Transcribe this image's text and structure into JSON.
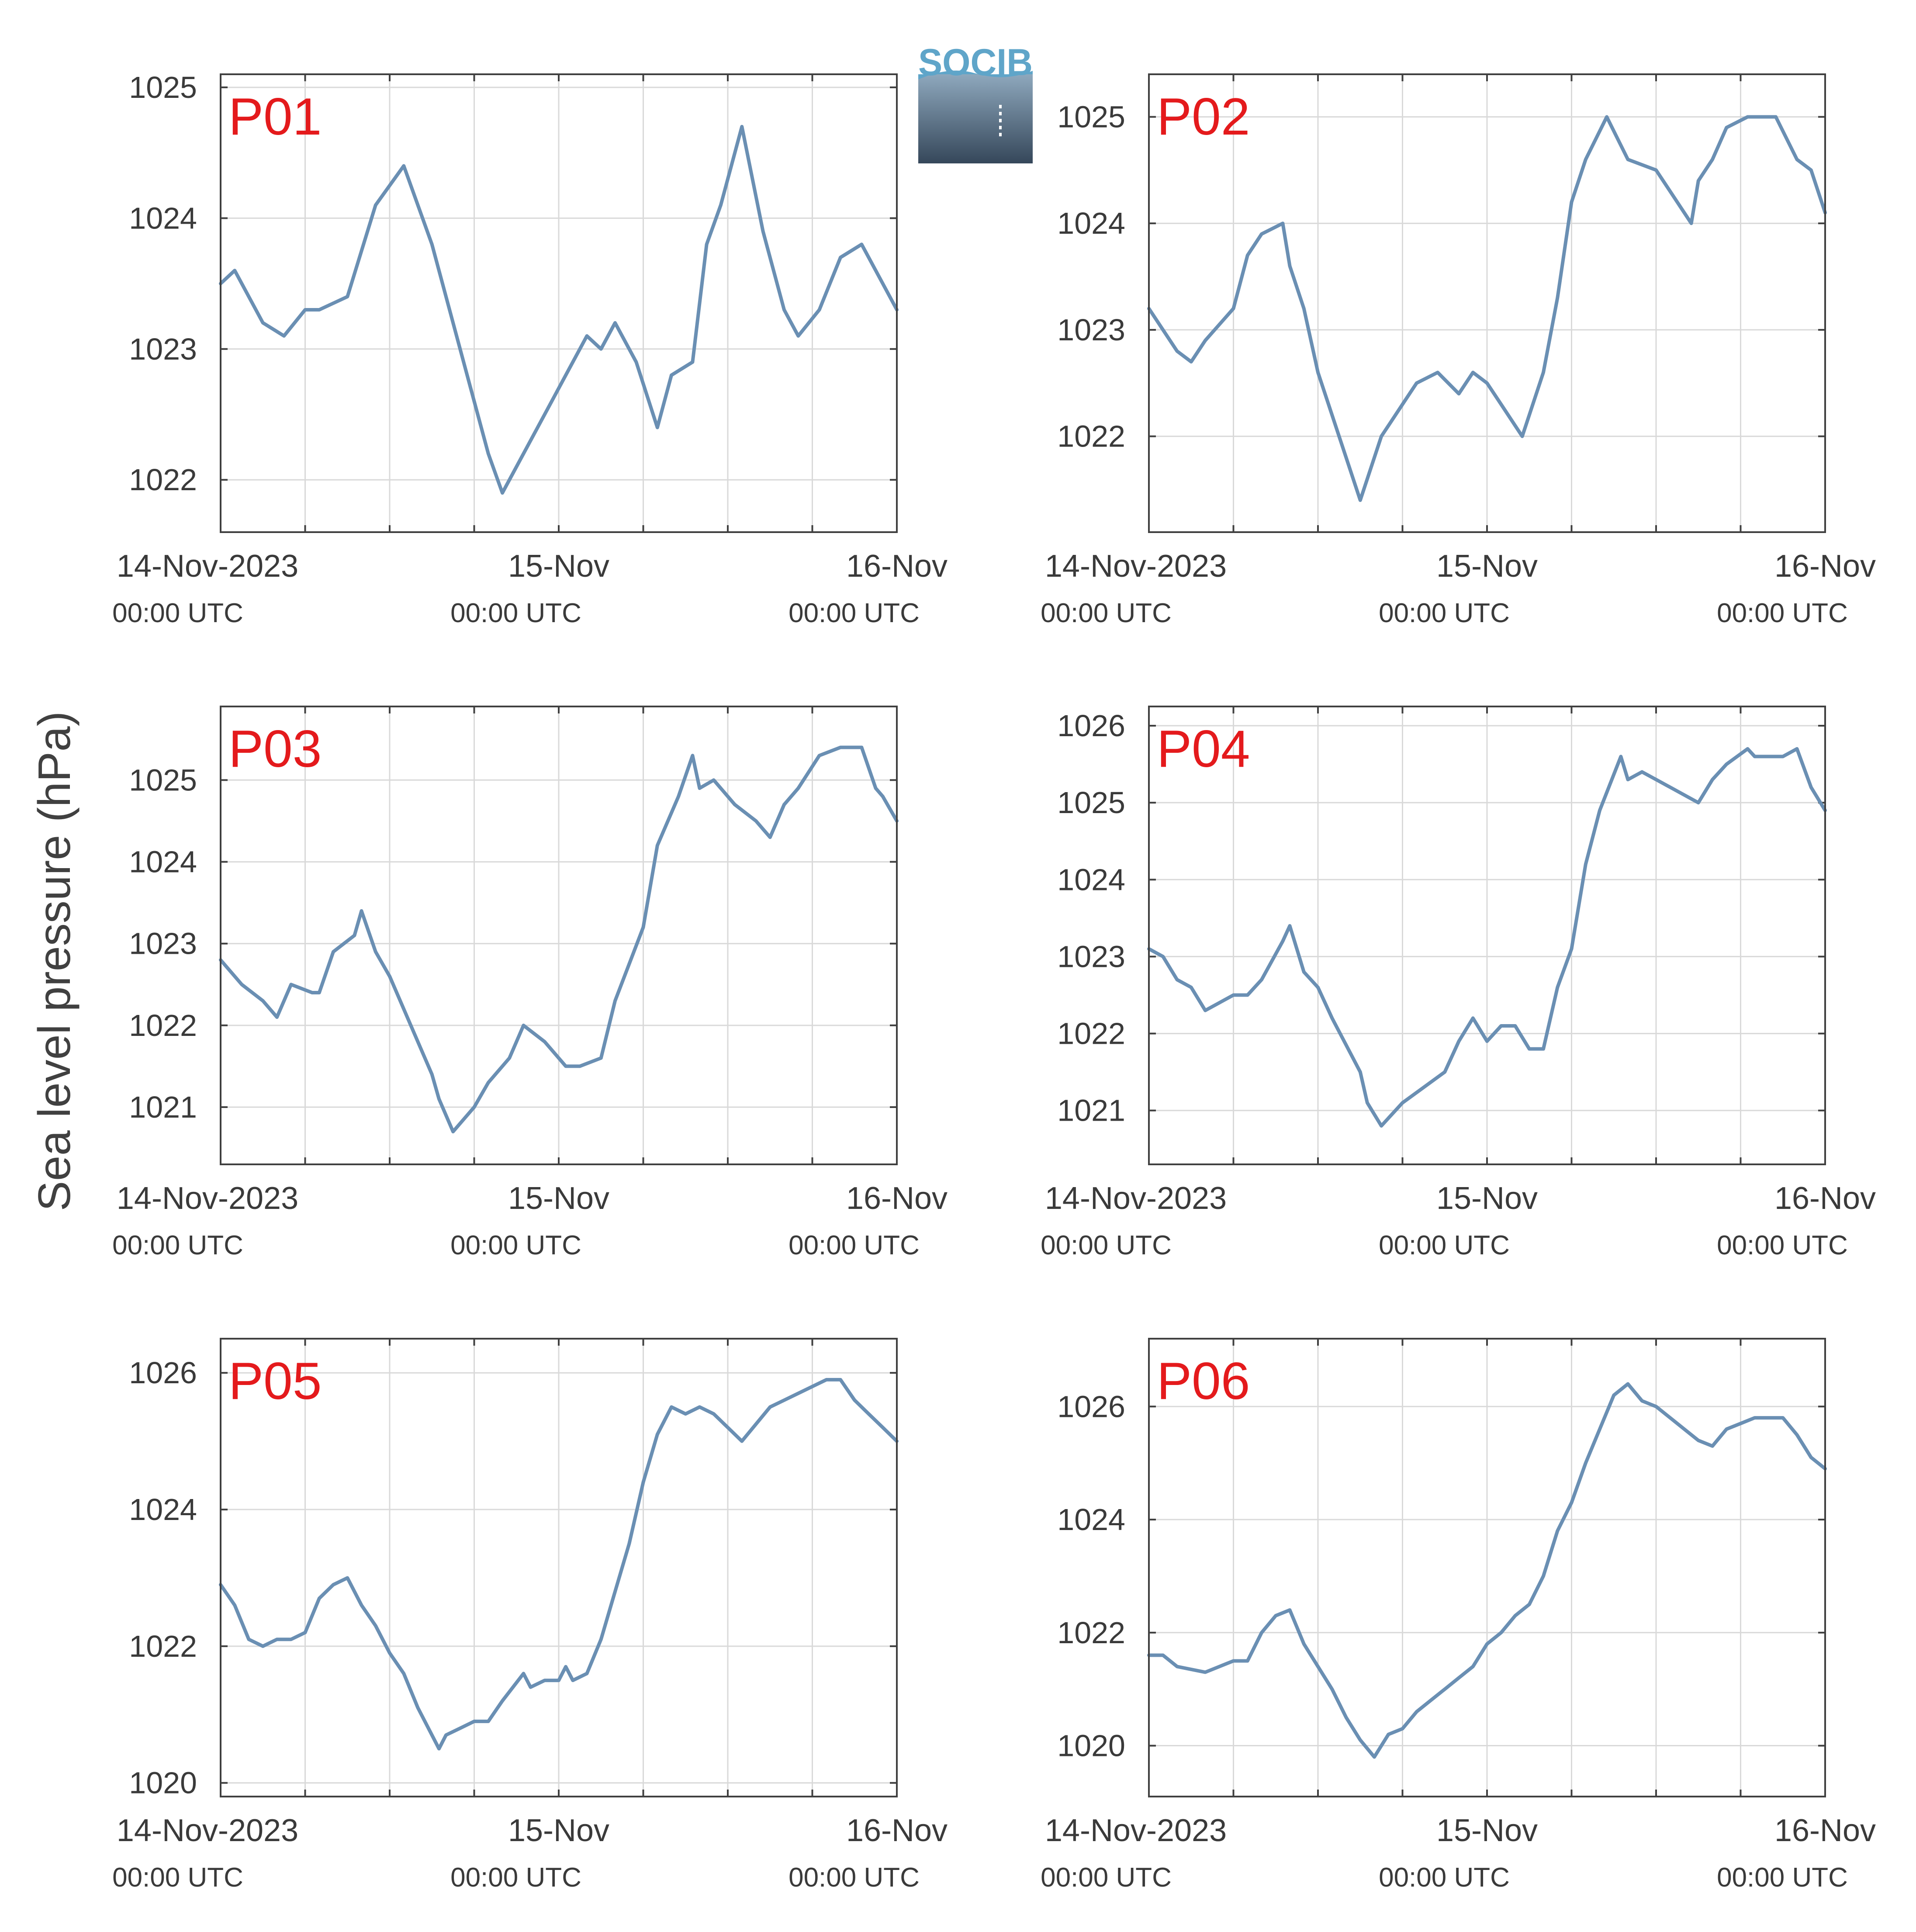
{
  "logo": {
    "text": "SOCIB",
    "text_color": "#5fa5c9",
    "gradient_top": "#8ea8bd",
    "gradient_bottom": "#35475a"
  },
  "ylabel": "Sea level pressure (hPa)",
  "colors": {
    "line": "#6a8fb3",
    "label": "#e41a1c",
    "grid": "#d9d9d9",
    "axis": "#404040"
  },
  "chart_data": [
    {
      "type": "line",
      "label": "P01",
      "ylim": [
        1021.6,
        1025.1
      ],
      "yticks": [
        1022,
        1023,
        1024,
        1025
      ],
      "grid": true,
      "x_range": [
        "2023-11-14T00:00",
        "2023-11-16T00:00"
      ],
      "xticks": [
        {
          "text": "14-Nov-2023",
          "sub": "00:00 UTC"
        },
        {
          "text": "15-Nov",
          "sub": "00:00 UTC"
        },
        {
          "text": "16-Nov",
          "sub": "00:00 UTC"
        }
      ],
      "series": [
        {
          "x": [
            "2023-11-14T00:00",
            "2023-11-14T01:00",
            "2023-11-14T03:00",
            "2023-11-14T04:30",
            "2023-11-14T06:00",
            "2023-11-14T07:00",
            "2023-11-14T09:00",
            "2023-11-14T11:00",
            "2023-11-14T13:00",
            "2023-11-14T15:00",
            "2023-11-14T16:00",
            "2023-11-14T18:00",
            "2023-11-14T19:00",
            "2023-11-14T20:00",
            "2023-11-14T21:30",
            "2023-11-14T23:00",
            "2023-11-15T00:30",
            "2023-11-15T02:00",
            "2023-11-15T03:00",
            "2023-11-15T04:00",
            "2023-11-15T05:30",
            "2023-11-15T07:00",
            "2023-11-15T08:00",
            "2023-11-15T09:30",
            "2023-11-15T10:30",
            "2023-11-15T11:30",
            "2023-11-15T13:00",
            "2023-11-15T14:30",
            "2023-11-15T16:00",
            "2023-11-15T17:00",
            "2023-11-15T18:30",
            "2023-11-15T20:00",
            "2023-11-15T21:30",
            "2023-11-15T23:00",
            "2023-11-16T00:00"
          ],
          "y": [
            1023.5,
            1023.6,
            1023.2,
            1023.1,
            1023.3,
            1023.3,
            1023.4,
            1024.1,
            1024.4,
            1023.8,
            1023.4,
            1022.6,
            1022.2,
            1021.9,
            1022.2,
            1022.5,
            1022.8,
            1023.1,
            1023.0,
            1023.2,
            1022.9,
            1022.4,
            1022.8,
            1022.9,
            1023.8,
            1024.1,
            1024.7,
            1023.9,
            1023.3,
            1023.1,
            1023.3,
            1023.7,
            1023.8,
            1023.5,
            1023.3
          ]
        }
      ]
    },
    {
      "type": "line",
      "label": "P02",
      "ylim": [
        1021.1,
        1025.4
      ],
      "yticks": [
        1022,
        1023,
        1024,
        1025
      ],
      "grid": true,
      "x_range": [
        "2023-11-14T00:00",
        "2023-11-16T00:00"
      ],
      "xticks": [
        {
          "text": "14-Nov-2023",
          "sub": "00:00 UTC"
        },
        {
          "text": "15-Nov",
          "sub": "00:00 UTC"
        },
        {
          "text": "16-Nov",
          "sub": "00:00 UTC"
        }
      ],
      "series": [
        {
          "x": [
            "2023-11-14T00:00",
            "2023-11-14T02:00",
            "2023-11-14T03:00",
            "2023-11-14T04:00",
            "2023-11-14T06:00",
            "2023-11-14T07:00",
            "2023-11-14T08:00",
            "2023-11-14T09:30",
            "2023-11-14T10:00",
            "2023-11-14T11:00",
            "2023-11-14T12:00",
            "2023-11-14T13:30",
            "2023-11-14T15:00",
            "2023-11-14T16:30",
            "2023-11-14T18:00",
            "2023-11-14T19:00",
            "2023-11-14T20:30",
            "2023-11-14T22:00",
            "2023-11-14T23:00",
            "2023-11-15T00:00",
            "2023-11-15T01:00",
            "2023-11-15T02:30",
            "2023-11-15T04:00",
            "2023-11-15T05:00",
            "2023-11-15T06:00",
            "2023-11-15T07:00",
            "2023-11-15T08:30",
            "2023-11-15T10:00",
            "2023-11-15T12:00",
            "2023-11-15T13:00",
            "2023-11-15T14:30",
            "2023-11-15T15:00",
            "2023-11-15T16:00",
            "2023-11-15T17:00",
            "2023-11-15T18:30",
            "2023-11-15T19:30",
            "2023-11-15T20:30",
            "2023-11-15T22:00",
            "2023-11-15T23:00",
            "2023-11-16T00:00"
          ],
          "y": [
            1023.2,
            1022.8,
            1022.7,
            1022.9,
            1023.2,
            1023.7,
            1023.9,
            1024.0,
            1023.6,
            1023.2,
            1022.6,
            1022.0,
            1021.4,
            1022.0,
            1022.3,
            1022.5,
            1022.6,
            1022.4,
            1022.6,
            1022.5,
            1022.3,
            1022.0,
            1022.6,
            1023.3,
            1024.2,
            1024.6,
            1025.0,
            1024.6,
            1024.5,
            1024.3,
            1024.0,
            1024.4,
            1024.6,
            1024.9,
            1025.0,
            1025.0,
            1025.0,
            1024.6,
            1024.5,
            1024.1
          ]
        }
      ]
    },
    {
      "type": "line",
      "label": "P03",
      "ylim": [
        1020.3,
        1025.9
      ],
      "yticks": [
        1021,
        1022,
        1023,
        1024,
        1025
      ],
      "grid": true,
      "x_range": [
        "2023-11-14T00:00",
        "2023-11-16T00:00"
      ],
      "xticks": [
        {
          "text": "14-Nov-2023",
          "sub": "00:00 UTC"
        },
        {
          "text": "15-Nov",
          "sub": "00:00 UTC"
        },
        {
          "text": "16-Nov",
          "sub": "00:00 UTC"
        }
      ],
      "series": [
        {
          "x": [
            "2023-11-14T00:00",
            "2023-11-14T01:30",
            "2023-11-14T03:00",
            "2023-11-14T04:00",
            "2023-11-14T05:00",
            "2023-11-14T06:30",
            "2023-11-14T07:00",
            "2023-11-14T08:00",
            "2023-11-14T09:30",
            "2023-11-14T10:00",
            "2023-11-14T11:00",
            "2023-11-14T12:00",
            "2023-11-14T13:30",
            "2023-11-14T15:00",
            "2023-11-14T15:30",
            "2023-11-14T16:30",
            "2023-11-14T18:00",
            "2023-11-14T19:00",
            "2023-11-14T20:30",
            "2023-11-14T21:30",
            "2023-11-14T23:00",
            "2023-11-15T00:30",
            "2023-11-15T01:30",
            "2023-11-15T03:00",
            "2023-11-15T04:00",
            "2023-11-15T06:00",
            "2023-11-15T07:00",
            "2023-11-15T08:30",
            "2023-11-15T09:30",
            "2023-11-15T10:00",
            "2023-11-15T11:00",
            "2023-11-15T11:30",
            "2023-11-15T12:30",
            "2023-11-15T14:00",
            "2023-11-15T15:00",
            "2023-11-15T16:00",
            "2023-11-15T17:00",
            "2023-11-15T18:30",
            "2023-11-15T20:00",
            "2023-11-15T21:30",
            "2023-11-15T22:30",
            "2023-11-15T23:00",
            "2023-11-16T00:00"
          ],
          "y": [
            1022.8,
            1022.5,
            1022.3,
            1022.1,
            1022.5,
            1022.4,
            1022.4,
            1022.9,
            1023.1,
            1023.4,
            1022.9,
            1022.6,
            1022.0,
            1021.4,
            1021.1,
            1020.7,
            1021.0,
            1021.3,
            1021.6,
            1022.0,
            1021.8,
            1021.5,
            1021.5,
            1021.6,
            1022.3,
            1023.2,
            1024.2,
            1024.8,
            1025.3,
            1024.9,
            1025.0,
            1024.9,
            1024.7,
            1024.5,
            1024.3,
            1024.7,
            1024.9,
            1025.3,
            1025.4,
            1025.4,
            1024.9,
            1024.8,
            1024.5
          ]
        }
      ]
    },
    {
      "type": "line",
      "label": "P04",
      "ylim": [
        1020.3,
        1026.25
      ],
      "yticks": [
        1021,
        1022,
        1023,
        1024,
        1025,
        1026
      ],
      "grid": true,
      "x_range": [
        "2023-11-14T00:00",
        "2023-11-16T00:00"
      ],
      "xticks": [
        {
          "text": "14-Nov-2023",
          "sub": "00:00 UTC"
        },
        {
          "text": "15-Nov",
          "sub": "00:00 UTC"
        },
        {
          "text": "16-Nov",
          "sub": "00:00 UTC"
        }
      ],
      "series": [
        {
          "x": [
            "2023-11-14T00:00",
            "2023-11-14T01:00",
            "2023-11-14T02:00",
            "2023-11-14T03:00",
            "2023-11-14T04:00",
            "2023-11-14T05:00",
            "2023-11-14T06:00",
            "2023-11-14T07:00",
            "2023-11-14T08:00",
            "2023-11-14T09:30",
            "2023-11-14T10:00",
            "2023-11-14T11:00",
            "2023-11-14T12:00",
            "2023-11-14T13:00",
            "2023-11-14T15:00",
            "2023-11-14T15:30",
            "2023-11-14T16:30",
            "2023-11-14T18:00",
            "2023-11-14T19:30",
            "2023-11-14T21:00",
            "2023-11-14T22:00",
            "2023-11-14T23:00",
            "2023-11-15T00:00",
            "2023-11-15T01:00",
            "2023-11-15T02:00",
            "2023-11-15T03:00",
            "2023-11-15T04:00",
            "2023-11-15T05:00",
            "2023-11-15T06:00",
            "2023-11-15T07:00",
            "2023-11-15T08:00",
            "2023-11-15T09:30",
            "2023-11-15T10:00",
            "2023-11-15T11:00",
            "2023-11-15T12:00",
            "2023-11-15T13:00",
            "2023-11-15T15:00",
            "2023-11-15T16:00",
            "2023-11-15T17:00",
            "2023-11-15T18:30",
            "2023-11-15T19:00",
            "2023-11-15T21:00",
            "2023-11-15T22:00",
            "2023-11-15T23:00",
            "2023-11-16T00:00"
          ],
          "y": [
            1023.1,
            1023.0,
            1022.7,
            1022.6,
            1022.3,
            1022.4,
            1022.5,
            1022.5,
            1022.7,
            1023.2,
            1023.4,
            1022.8,
            1022.6,
            1022.2,
            1021.5,
            1021.1,
            1020.8,
            1021.1,
            1021.3,
            1021.5,
            1021.9,
            1022.2,
            1021.9,
            1022.1,
            1022.1,
            1021.8,
            1021.8,
            1022.6,
            1023.1,
            1024.2,
            1024.9,
            1025.6,
            1025.3,
            1025.4,
            1025.3,
            1025.2,
            1025.0,
            1025.3,
            1025.5,
            1025.7,
            1025.6,
            1025.6,
            1025.7,
            1025.2,
            1024.9
          ]
        }
      ]
    },
    {
      "type": "line",
      "label": "P05",
      "ylim": [
        1019.8,
        1026.5
      ],
      "yticks": [
        1020,
        1022,
        1024,
        1026
      ],
      "grid": true,
      "x_range": [
        "2023-11-14T00:00",
        "2023-11-16T00:00"
      ],
      "xticks": [
        {
          "text": "14-Nov-2023",
          "sub": "00:00 UTC"
        },
        {
          "text": "15-Nov",
          "sub": "00:00 UTC"
        },
        {
          "text": "16-Nov",
          "sub": "00:00 UTC"
        }
      ],
      "series": [
        {
          "x": [
            "2023-11-14T00:00",
            "2023-11-14T01:00",
            "2023-11-14T02:00",
            "2023-11-14T03:00",
            "2023-11-14T04:00",
            "2023-11-14T05:00",
            "2023-11-14T06:00",
            "2023-11-14T07:00",
            "2023-11-14T08:00",
            "2023-11-14T09:00",
            "2023-11-14T10:00",
            "2023-11-14T11:00",
            "2023-11-14T12:00",
            "2023-11-14T13:00",
            "2023-11-14T14:00",
            "2023-11-14T15:30",
            "2023-11-14T16:00",
            "2023-11-14T17:00",
            "2023-11-14T18:00",
            "2023-11-14T19:00",
            "2023-11-14T20:00",
            "2023-11-14T21:30",
            "2023-11-14T22:00",
            "2023-11-14T23:00",
            "2023-11-15T00:00",
            "2023-11-15T00:30",
            "2023-11-15T01:00",
            "2023-11-15T02:00",
            "2023-11-15T03:00",
            "2023-11-15T04:00",
            "2023-11-15T05:00",
            "2023-11-15T06:00",
            "2023-11-15T07:00",
            "2023-11-15T08:00",
            "2023-11-15T09:00",
            "2023-11-15T10:00",
            "2023-11-15T11:00",
            "2023-11-15T12:00",
            "2023-11-15T13:00",
            "2023-11-15T15:00",
            "2023-11-15T16:00",
            "2023-11-15T17:00",
            "2023-11-15T18:00",
            "2023-11-15T19:00",
            "2023-11-15T20:00",
            "2023-11-15T21:00",
            "2023-11-15T22:00",
            "2023-11-15T23:00",
            "2023-11-16T00:00"
          ],
          "y": [
            1022.9,
            1022.6,
            1022.1,
            1022.0,
            1022.1,
            1022.1,
            1022.2,
            1022.7,
            1022.9,
            1023.0,
            1022.6,
            1022.3,
            1021.9,
            1021.6,
            1021.1,
            1020.5,
            1020.7,
            1020.8,
            1020.9,
            1020.9,
            1021.2,
            1021.6,
            1021.4,
            1021.5,
            1021.5,
            1021.7,
            1021.5,
            1021.6,
            1022.1,
            1022.8,
            1023.5,
            1024.4,
            1025.1,
            1025.5,
            1025.4,
            1025.5,
            1025.4,
            1025.2,
            1025.0,
            1025.5,
            1025.6,
            1025.7,
            1025.8,
            1025.9,
            1025.9,
            1025.6,
            1025.4,
            1025.2,
            1025.0
          ]
        }
      ]
    },
    {
      "type": "line",
      "label": "P06",
      "ylim": [
        1019.1,
        1027.2
      ],
      "yticks": [
        1020,
        1022,
        1024,
        1026
      ],
      "grid": true,
      "x_range": [
        "2023-11-14T00:00",
        "2023-11-16T00:00"
      ],
      "xticks": [
        {
          "text": "14-Nov-2023",
          "sub": "00:00 UTC"
        },
        {
          "text": "15-Nov",
          "sub": "00:00 UTC"
        },
        {
          "text": "16-Nov",
          "sub": "00:00 UTC"
        }
      ],
      "series": [
        {
          "x": [
            "2023-11-14T00:00",
            "2023-11-14T01:00",
            "2023-11-14T02:00",
            "2023-11-14T04:00",
            "2023-11-14T05:00",
            "2023-11-14T06:00",
            "2023-11-14T07:00",
            "2023-11-14T08:00",
            "2023-11-14T09:00",
            "2023-11-14T10:00",
            "2023-11-14T11:00",
            "2023-11-14T12:00",
            "2023-11-14T13:00",
            "2023-11-14T14:00",
            "2023-11-14T15:00",
            "2023-11-14T16:00",
            "2023-11-14T17:00",
            "2023-11-14T18:00",
            "2023-11-14T19:00",
            "2023-11-14T20:00",
            "2023-11-14T21:00",
            "2023-11-14T22:00",
            "2023-11-14T23:00",
            "2023-11-15T00:00",
            "2023-11-15T01:00",
            "2023-11-15T02:00",
            "2023-11-15T03:00",
            "2023-11-15T04:00",
            "2023-11-15T05:00",
            "2023-11-15T06:00",
            "2023-11-15T07:00",
            "2023-11-15T08:00",
            "2023-11-15T09:00",
            "2023-11-15T10:00",
            "2023-11-15T11:00",
            "2023-11-15T12:00",
            "2023-11-15T13:00",
            "2023-11-15T14:00",
            "2023-11-15T15:00",
            "2023-11-15T16:00",
            "2023-11-15T17:00",
            "2023-11-15T18:00",
            "2023-11-15T19:00",
            "2023-11-15T20:00",
            "2023-11-15T21:00",
            "2023-11-15T22:00",
            "2023-11-15T23:00",
            "2023-11-16T00:00"
          ],
          "y": [
            1021.6,
            1021.6,
            1021.4,
            1021.3,
            1021.4,
            1021.5,
            1021.5,
            1022.0,
            1022.3,
            1022.4,
            1021.8,
            1021.4,
            1021.0,
            1020.5,
            1020.1,
            1019.8,
            1020.2,
            1020.3,
            1020.6,
            1020.8,
            1021.0,
            1021.2,
            1021.4,
            1021.8,
            1022.0,
            1022.3,
            1022.5,
            1023.0,
            1023.8,
            1024.3,
            1025.0,
            1025.6,
            1026.2,
            1026.4,
            1026.1,
            1026.0,
            1025.8,
            1025.6,
            1025.4,
            1025.3,
            1025.6,
            1025.7,
            1025.8,
            1025.8,
            1025.8,
            1025.5,
            1025.1,
            1024.9
          ]
        }
      ]
    }
  ]
}
